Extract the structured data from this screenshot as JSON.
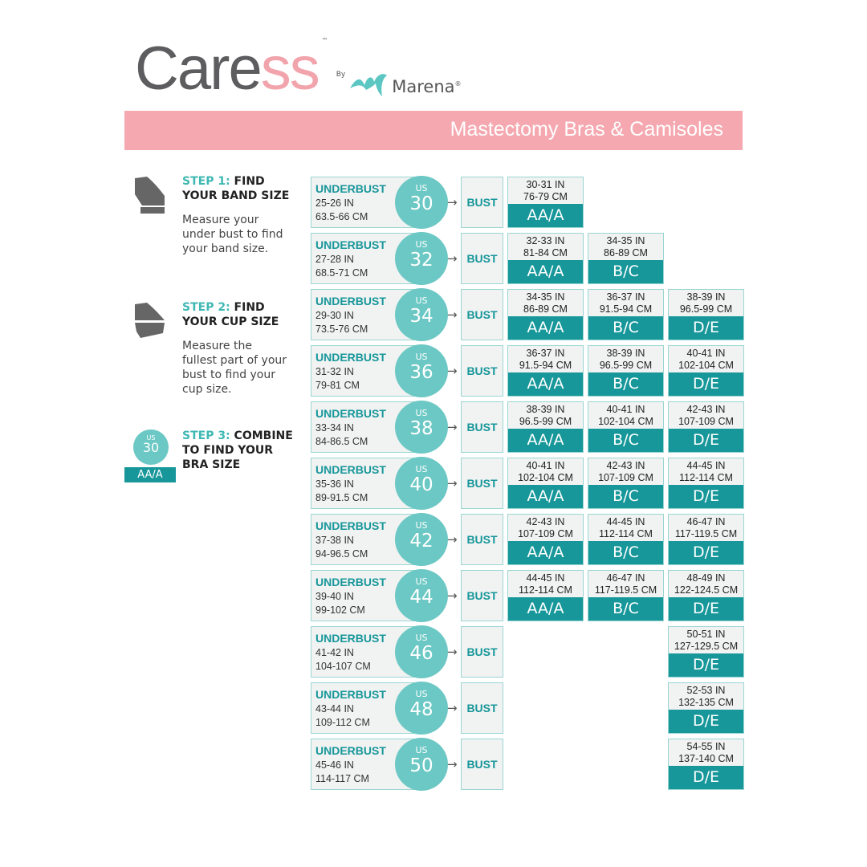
{
  "brand": {
    "name_a": "Care",
    "name_b": "ss",
    "tm": "™",
    "by": "By",
    "partner": "Marena",
    "reg": "®"
  },
  "banner": "Mastectomy Bras & Camisoles",
  "steps": [
    {
      "num": "STEP 1:",
      "title_a": " FIND",
      "title_b": "YOUR BAND SIZE",
      "desc": "Measure your under bust to find your band size."
    },
    {
      "num": "STEP 2:",
      "title_a": " FIND",
      "title_b": "YOUR CUP SIZE",
      "desc": "Measure the fullest part of your bust  to find your cup size."
    },
    {
      "num": "STEP 3:",
      "title_a": " COMBINE",
      "title_b": "TO FIND YOUR",
      "title_c": "BRA SIZE",
      "example_us": "US",
      "example_band": "30",
      "example_cup": "AA/A"
    }
  ],
  "labels": {
    "underbust": "UNDERBUST",
    "us": "US",
    "bust": "BUST",
    "arrow": "→"
  },
  "rows": [
    {
      "band": "30",
      "in": "25-26 IN",
      "cm": "63.5-66 CM",
      "cups": [
        {
          "in": "30-31 IN",
          "cm": "76-79 CM",
          "cup": "AA/A"
        },
        null,
        null
      ]
    },
    {
      "band": "32",
      "in": "27-28 IN",
      "cm": "68.5-71 CM",
      "cups": [
        {
          "in": "32-33 IN",
          "cm": "81-84 CM",
          "cup": "AA/A"
        },
        {
          "in": "34-35 IN",
          "cm": "86-89 CM",
          "cup": "B/C"
        },
        null
      ]
    },
    {
      "band": "34",
      "in": "29-30 IN",
      "cm": "73.5-76 CM",
      "cups": [
        {
          "in": "34-35 IN",
          "cm": "86-89 CM",
          "cup": "AA/A"
        },
        {
          "in": "36-37 IN",
          "cm": "91.5-94 CM",
          "cup": "B/C"
        },
        {
          "in": "38-39 IN",
          "cm": "96.5-99 CM",
          "cup": "D/E"
        }
      ]
    },
    {
      "band": "36",
      "in": "31-32 IN",
      "cm": "79-81 CM",
      "cups": [
        {
          "in": "36-37 IN",
          "cm": "91.5-94 CM",
          "cup": "AA/A"
        },
        {
          "in": "38-39 IN",
          "cm": "96.5-99 CM",
          "cup": "B/C"
        },
        {
          "in": "40-41 IN",
          "cm": "102-104 CM",
          "cup": "D/E"
        }
      ]
    },
    {
      "band": "38",
      "in": "33-34 IN",
      "cm": "84-86.5 CM",
      "cups": [
        {
          "in": "38-39 IN",
          "cm": "96.5-99 CM",
          "cup": "AA/A"
        },
        {
          "in": "40-41 IN",
          "cm": "102-104 CM",
          "cup": "B/C"
        },
        {
          "in": "42-43 IN",
          "cm": "107-109 CM",
          "cup": "D/E"
        }
      ]
    },
    {
      "band": "40",
      "in": "35-36 IN",
      "cm": "89-91.5 CM",
      "cups": [
        {
          "in": "40-41 IN",
          "cm": "102-104 CM",
          "cup": "AA/A"
        },
        {
          "in": "42-43 IN",
          "cm": "107-109 CM",
          "cup": "B/C"
        },
        {
          "in": "44-45 IN",
          "cm": "112-114 CM",
          "cup": "D/E"
        }
      ]
    },
    {
      "band": "42",
      "in": "37-38 IN",
      "cm": "94-96.5 CM",
      "cups": [
        {
          "in": "42-43 IN",
          "cm": "107-109 CM",
          "cup": "AA/A"
        },
        {
          "in": "44-45 IN",
          "cm": "112-114 CM",
          "cup": "B/C"
        },
        {
          "in": "46-47 IN",
          "cm": "117-119.5 CM",
          "cup": "D/E"
        }
      ]
    },
    {
      "band": "44",
      "in": "39-40 IN",
      "cm": "99-102 CM",
      "cups": [
        {
          "in": "44-45 IN",
          "cm": "112-114 CM",
          "cup": "AA/A"
        },
        {
          "in": "46-47 IN",
          "cm": "117-119.5 CM",
          "cup": "B/C"
        },
        {
          "in": "48-49 IN",
          "cm": "122-124.5 CM",
          "cup": "D/E"
        }
      ]
    },
    {
      "band": "46",
      "in": "41-42 IN",
      "cm": "104-107 CM",
      "cups": [
        null,
        null,
        {
          "in": "50-51 IN",
          "cm": "127-129.5 CM",
          "cup": "D/E"
        }
      ]
    },
    {
      "band": "48",
      "in": "43-44 IN",
      "cm": "109-112 CM",
      "cups": [
        null,
        null,
        {
          "in": "52-53 IN",
          "cm": "132-135 CM",
          "cup": "D/E"
        }
      ]
    },
    {
      "band": "50",
      "in": "45-46 IN",
      "cm": "114-117 CM",
      "cups": [
        null,
        null,
        {
          "in": "54-55 IN",
          "cm": "137-140 CM",
          "cup": "D/E"
        }
      ]
    }
  ],
  "colors": {
    "teal": "#17979a",
    "teal_light": "#6cc8c4",
    "pink": "#f5a8b0"
  }
}
